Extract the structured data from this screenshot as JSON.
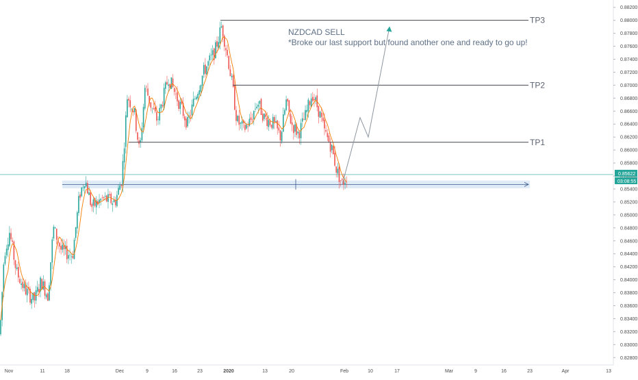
{
  "chart_data": {
    "type": "candlestick",
    "symbol": "NZDCAD",
    "ylim": [
      0.8275,
      0.8825
    ],
    "y_ticks": [
      "0.88200",
      "0.88000",
      "0.87800",
      "0.87600",
      "0.87400",
      "0.87200",
      "0.87000",
      "0.86800",
      "0.86600",
      "0.86400",
      "0.86200",
      "0.86000",
      "0.85800",
      "0.85600",
      "0.85400",
      "0.85200",
      "0.85000",
      "0.84800",
      "0.84600",
      "0.84400",
      "0.84200",
      "0.84000",
      "0.83800",
      "0.83600",
      "0.83400",
      "0.83200",
      "0.83000",
      "0.82800"
    ],
    "x_ticks": [
      "Nov",
      "11",
      "18",
      "Dec",
      "9",
      "16",
      "23",
      "2020",
      "13",
      "20",
      "Feb",
      "10",
      "17",
      "Mar",
      "9",
      "16",
      "23",
      "Apr",
      "13"
    ],
    "annotation_title": "NZDCAD SELL",
    "annotation_text": "*Broke our last support but found another one and ready to go up!",
    "levels": [
      {
        "label": "TP3",
        "price": 0.88
      },
      {
        "label": "TP2",
        "price": 0.87
      },
      {
        "label": "TP1",
        "price": 0.8612
      }
    ],
    "support_zone": [
      0.8541,
      0.8553
    ],
    "current_price": "0.85622",
    "countdown": "03:08:55",
    "projection": [
      0.8547,
      0.865,
      0.862,
      0.879
    ],
    "colors": {
      "up": "#26a69a",
      "down": "#ef5350",
      "ma": "#f57c00",
      "levels": "#434651",
      "zone": "#d6e4f5",
      "projection": "#8c959f",
      "price_line": "#26a69a"
    }
  }
}
